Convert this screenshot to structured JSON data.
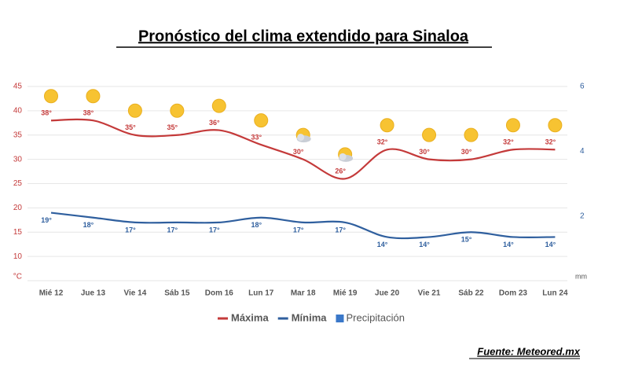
{
  "chart_data": {
    "type": "line",
    "title": "Pronóstico del clima extendido para Sinaloa",
    "y_unit": "°C",
    "y2_unit": "mm",
    "source": "Fuente: Meteored.mx",
    "categories": [
      "Mié 12",
      "Jue 13",
      "Vie 14",
      "Sáb 15",
      "Dom 16",
      "Lun 17",
      "Mar 18",
      "Mié 19",
      "Jue 20",
      "Vie 21",
      "Sáb 22",
      "Dom 23",
      "Lun 24"
    ],
    "series": [
      {
        "name": "Máxima",
        "color": "#c43a3a",
        "values": [
          38,
          38,
          35,
          35,
          36,
          33,
          30,
          26,
          32,
          30,
          30,
          32,
          32
        ],
        "value_labels": [
          "38°",
          "38°",
          "35°",
          "35°",
          "36°",
          "33°",
          "30°",
          "26°",
          "32°",
          "30°",
          "30°",
          "32°",
          "32°"
        ]
      },
      {
        "name": "Mínima",
        "color": "#2f5f9e",
        "values": [
          19,
          18,
          17,
          17,
          17,
          18,
          17,
          17,
          14,
          14,
          15,
          14,
          14
        ],
        "value_labels": [
          "19°",
          "18°",
          "17°",
          "17°",
          "17°",
          "18°",
          "17°",
          "17°",
          "14°",
          "14°",
          "15°",
          "14°",
          "14°"
        ]
      },
      {
        "name": "Precipitación",
        "color": "#3a78c9",
        "axis": "y2",
        "chart": "bar",
        "values": [
          0,
          0,
          0,
          0,
          0,
          0,
          0,
          0,
          0,
          0,
          0,
          0,
          0
        ]
      }
    ],
    "ylim": [
      5,
      45
    ],
    "yticks": [
      10,
      15,
      20,
      25,
      30,
      35,
      40,
      45
    ],
    "y2lim": [
      0,
      6
    ],
    "y2ticks": [
      2,
      4,
      6
    ],
    "grid": true,
    "legend": "bottom"
  }
}
